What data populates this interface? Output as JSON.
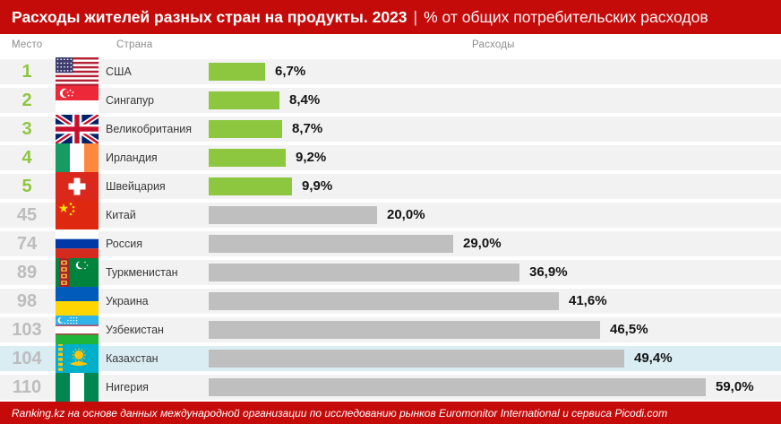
{
  "header": {
    "title_bold": "Расходы жителей разных стран на продукты. 2023",
    "separator": "|",
    "subtitle": "% от общих потребительских расходов"
  },
  "columns": {
    "rank": "Место",
    "country": "Страна",
    "value": "Расходы"
  },
  "chart_data": {
    "type": "bar",
    "orientation": "horizontal",
    "title": "Расходы жителей разных стран на продукты. 2023 | % от общих потребительских расходов",
    "unit": "%",
    "value_axis_max": 59.0,
    "rows": [
      {
        "rank": "1",
        "country": "США",
        "flag": "us",
        "value": 6.7,
        "label": "6,7%",
        "tier": "top",
        "highlight": false
      },
      {
        "rank": "2",
        "country": "Сингапур",
        "flag": "sg",
        "value": 8.4,
        "label": "8,4%",
        "tier": "top",
        "highlight": false
      },
      {
        "rank": "3",
        "country": "Великобритания",
        "flag": "gb",
        "value": 8.7,
        "label": "8,7%",
        "tier": "top",
        "highlight": false
      },
      {
        "rank": "4",
        "country": "Ирландия",
        "flag": "ie",
        "value": 9.2,
        "label": "9,2%",
        "tier": "top",
        "highlight": false
      },
      {
        "rank": "5",
        "country": "Швейцария",
        "flag": "ch",
        "value": 9.9,
        "label": "9,9%",
        "tier": "top",
        "highlight": false
      },
      {
        "rank": "45",
        "country": "Китай",
        "flag": "cn",
        "value": 20.0,
        "label": "20,0%",
        "tier": "rest",
        "highlight": false
      },
      {
        "rank": "74",
        "country": "Россия",
        "flag": "ru",
        "value": 29.0,
        "label": "29,0%",
        "tier": "rest",
        "highlight": false
      },
      {
        "rank": "89",
        "country": "Туркменистан",
        "flag": "tm",
        "value": 36.9,
        "label": "36,9%",
        "tier": "rest",
        "highlight": false
      },
      {
        "rank": "98",
        "country": "Украина",
        "flag": "ua",
        "value": 41.6,
        "label": "41,6%",
        "tier": "rest",
        "highlight": false
      },
      {
        "rank": "103",
        "country": "Узбекистан",
        "flag": "uz",
        "value": 46.5,
        "label": "46,5%",
        "tier": "rest",
        "highlight": false
      },
      {
        "rank": "104",
        "country": "Казахстан",
        "flag": "kz",
        "value": 49.4,
        "label": "49,4%",
        "tier": "rest",
        "highlight": true
      },
      {
        "rank": "110",
        "country": "Нигерия",
        "flag": "ng",
        "value": 59.0,
        "label": "59,0%",
        "tier": "rest",
        "highlight": false
      }
    ]
  },
  "footer": {
    "source_text": "Ranking.kz на основе данных международной организации по исследованию рынков Euromonitor International и сервиса Picodi.com"
  },
  "colors": {
    "header_bg": "#c50a0a",
    "footer_bg": "#c50a0a",
    "accent_green": "#8dc63f",
    "bar_gray": "#bfbfbf",
    "rank_gray": "#bdbdbd",
    "row_bg": "#f2f2f2",
    "highlight_bg": "#d9edf3"
  }
}
